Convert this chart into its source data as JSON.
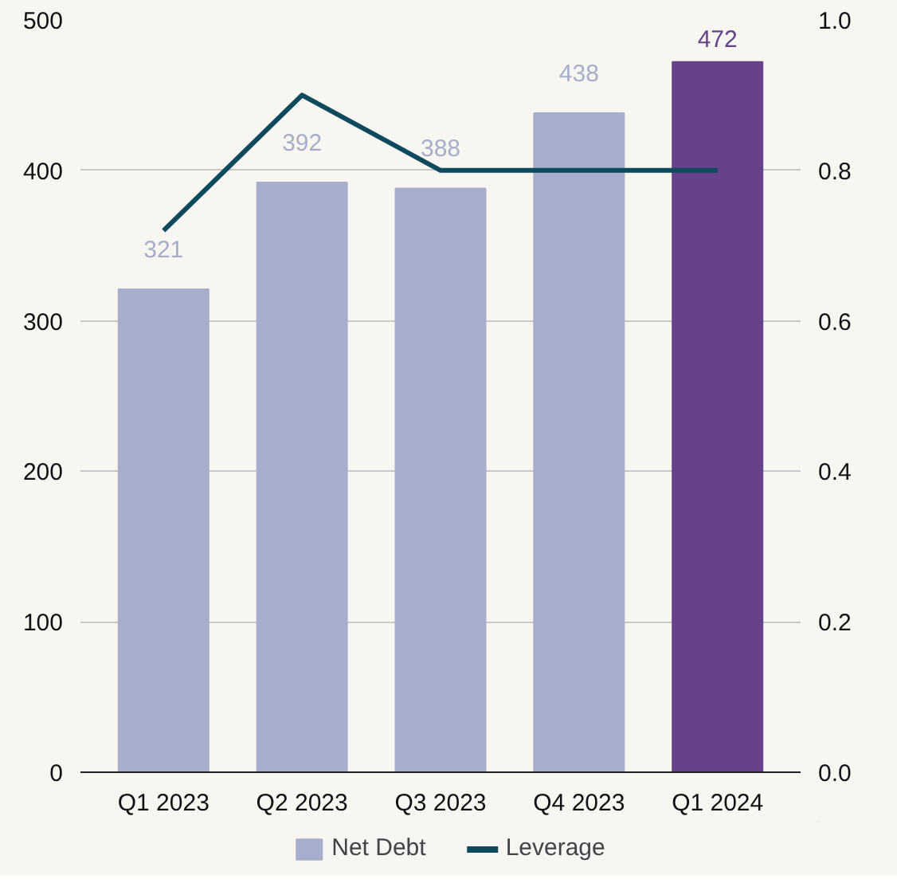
{
  "chart_data": {
    "type": "bar",
    "categories": [
      "Q1 2023",
      "Q2 2023",
      "Q3 2023",
      "Q4 2023",
      "Q1 2024"
    ],
    "series": [
      {
        "name": "Net Debt",
        "color": "#a7aecb",
        "colors": [
          "#a7aecb",
          "#a7aecb",
          "#a7aecb",
          "#a7aecb",
          "#65428a"
        ],
        "values": [
          321,
          392,
          388,
          438,
          472
        ],
        "data_labels": true
      },
      {
        "name": "Leverage",
        "type": "line",
        "axis": "y2",
        "color": "#0e4a5e",
        "values": [
          0.72,
          0.9,
          0.8,
          0.8,
          0.8
        ]
      }
    ],
    "ylim": [
      0,
      500
    ],
    "yticks": [
      0,
      100,
      200,
      300,
      400,
      500
    ],
    "y2lim": [
      0,
      1.0
    ],
    "y2ticks": [
      {
        "value": 0,
        "label": "0.0"
      },
      {
        "value": 0.2,
        "label": "0.2"
      },
      {
        "value": 0.4,
        "label": "0.4"
      },
      {
        "value": 0.6,
        "label": "0.6"
      },
      {
        "value": 0.8,
        "label": "0.8"
      },
      {
        "value": 1.0,
        "label": "1.0"
      }
    ],
    "grid": "y",
    "legend": "bottom",
    "marker": "none",
    "line_style": "solid"
  }
}
